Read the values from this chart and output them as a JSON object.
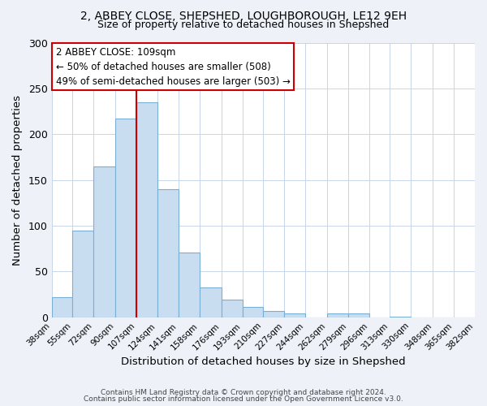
{
  "title1": "2, ABBEY CLOSE, SHEPSHED, LOUGHBOROUGH, LE12 9EH",
  "title2": "Size of property relative to detached houses in Shepshed",
  "xlabel": "Distribution of detached houses by size in Shepshed",
  "ylabel": "Number of detached properties",
  "bar_values": [
    22,
    95,
    165,
    217,
    235,
    140,
    71,
    33,
    19,
    11,
    7,
    4,
    0,
    4,
    4,
    0,
    1,
    0,
    0,
    0
  ],
  "bin_edges": [
    38,
    55,
    72,
    90,
    107,
    124,
    141,
    158,
    176,
    193,
    210,
    227,
    244,
    262,
    279,
    296,
    313,
    330,
    348,
    365,
    382
  ],
  "tick_labels": [
    "38sqm",
    "55sqm",
    "72sqm",
    "90sqm",
    "107sqm",
    "124sqm",
    "141sqm",
    "158sqm",
    "176sqm",
    "193sqm",
    "210sqm",
    "227sqm",
    "244sqm",
    "262sqm",
    "279sqm",
    "296sqm",
    "313sqm",
    "330sqm",
    "348sqm",
    "365sqm",
    "382sqm"
  ],
  "bar_color": "#c9ddf0",
  "bar_edge_color": "#7aafd4",
  "vline_x": 107,
  "vline_color": "#cc0000",
  "ylim": [
    0,
    300
  ],
  "yticks": [
    0,
    50,
    100,
    150,
    200,
    250,
    300
  ],
  "annotation_title": "2 ABBEY CLOSE: 109sqm",
  "annotation_line1": "← 50% of detached houses are smaller (508)",
  "annotation_line2": "49% of semi-detached houses are larger (503) →",
  "box_color": "#cc0000",
  "footnote1": "Contains HM Land Registry data © Crown copyright and database right 2024.",
  "footnote2": "Contains public sector information licensed under the Open Government Licence v3.0.",
  "background_color": "#eef2f8",
  "plot_bg_color": "#ffffff",
  "grid_color": "#c8d4e8"
}
